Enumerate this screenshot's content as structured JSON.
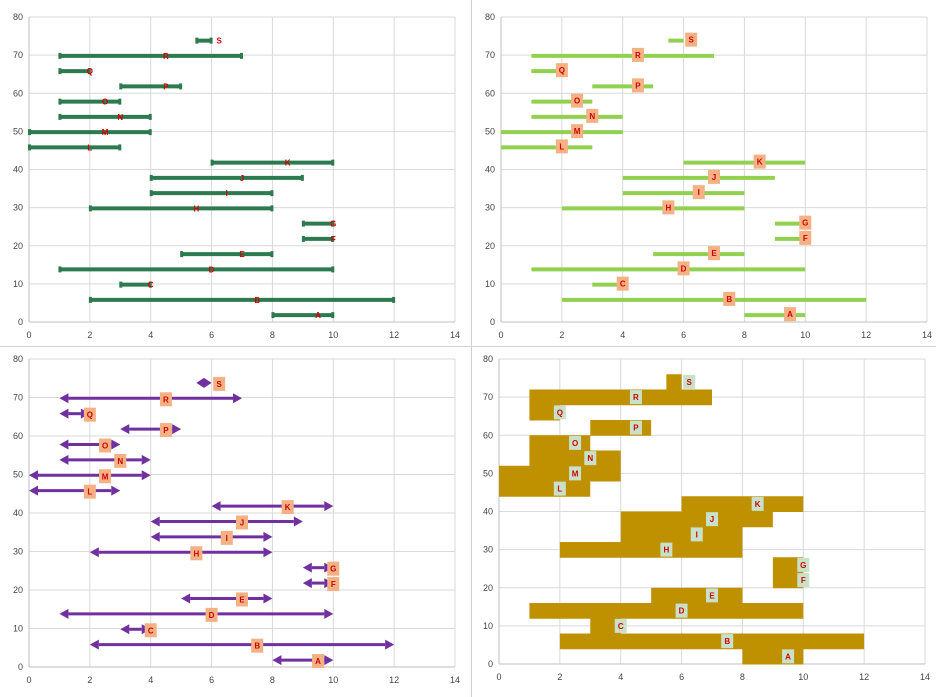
{
  "chart_data": [
    {
      "type": "floating-bar",
      "style": "dark-bar-overlaid-label",
      "xlim": [
        0,
        14
      ],
      "ylim": [
        0,
        80
      ],
      "xticks": [
        0,
        2,
        4,
        6,
        8,
        10,
        12,
        14
      ],
      "yticks": [
        0,
        10,
        20,
        30,
        40,
        50,
        60,
        70,
        80
      ],
      "color": "#2e7a50"
    },
    {
      "type": "floating-bar",
      "style": "light-bar-boxed-label",
      "xlim": [
        0,
        14
      ],
      "ylim": [
        0,
        80
      ],
      "xticks": [
        0,
        2,
        4,
        6,
        8,
        10,
        12,
        14
      ],
      "yticks": [
        0,
        10,
        20,
        30,
        40,
        50,
        60,
        70,
        80
      ],
      "color": "#92d050"
    },
    {
      "type": "floating-arrow",
      "style": "double-arrow-boxed-label",
      "xlim": [
        0,
        14
      ],
      "ylim": [
        0,
        80
      ],
      "xticks": [
        0,
        2,
        4,
        6,
        8,
        10,
        12,
        14
      ],
      "yticks": [
        0,
        10,
        20,
        30,
        40,
        50,
        60,
        70,
        80
      ],
      "color": "#7030a0"
    },
    {
      "type": "area",
      "style": "filled-interval-area",
      "xlim": [
        0,
        14
      ],
      "ylim": [
        0,
        80
      ],
      "xticks": [
        0,
        2,
        4,
        6,
        8,
        10,
        12,
        14
      ],
      "yticks": [
        0,
        10,
        20,
        30,
        40,
        50,
        60,
        70,
        80
      ],
      "color": "#bf9000"
    }
  ],
  "intervals": [
    {
      "name": "A",
      "start": 8,
      "end": 10,
      "y": 1
    },
    {
      "name": "B",
      "start": 2,
      "end": 12,
      "y": 5
    },
    {
      "name": "C",
      "start": 3,
      "end": 4,
      "y": 9
    },
    {
      "name": "D",
      "start": 1,
      "end": 10,
      "y": 13
    },
    {
      "name": "E",
      "start": 5,
      "end": 8,
      "y": 17
    },
    {
      "name": "F",
      "start": 9,
      "end": 10,
      "y": 21
    },
    {
      "name": "G",
      "start": 9,
      "end": 10,
      "y": 25
    },
    {
      "name": "H",
      "start": 2,
      "end": 8,
      "y": 29
    },
    {
      "name": "I",
      "start": 4,
      "end": 8,
      "y": 33
    },
    {
      "name": "J",
      "start": 4,
      "end": 9,
      "y": 37
    },
    {
      "name": "K",
      "start": 6,
      "end": 10,
      "y": 41
    },
    {
      "name": "L",
      "start": 0,
      "end": 3,
      "y": 45
    },
    {
      "name": "M",
      "start": 0,
      "end": 4,
      "y": 49
    },
    {
      "name": "N",
      "start": 1,
      "end": 4,
      "y": 53
    },
    {
      "name": "O",
      "start": 1,
      "end": 3,
      "y": 57
    },
    {
      "name": "P",
      "start": 3,
      "end": 5,
      "y": 61
    },
    {
      "name": "Q",
      "start": 1,
      "end": 2,
      "y": 65
    },
    {
      "name": "R",
      "start": 1,
      "end": 7,
      "y": 69
    },
    {
      "name": "S",
      "start": 5.5,
      "end": 6,
      "y": 73
    }
  ],
  "colors": {
    "grid": "#d9d9d9",
    "axis": "#bfbfbf",
    "label_box": "#f4b183",
    "label_box_area": "#c9e0c9",
    "label_text": "#d00000"
  }
}
